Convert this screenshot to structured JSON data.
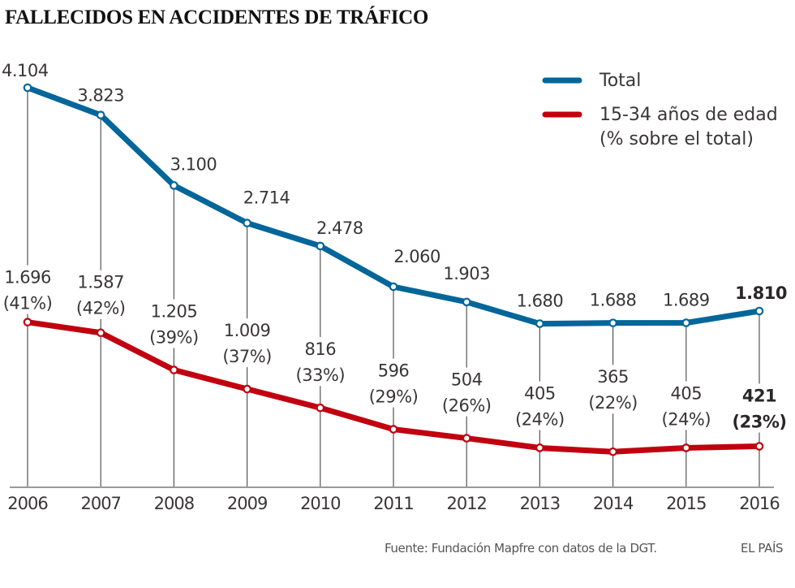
{
  "chart_data": {
    "type": "line",
    "title": "FALLECIDOS EN ACCIDENTES DE TRÁFICO",
    "xlabel": "",
    "ylabel": "",
    "x": [
      "2006",
      "2007",
      "2008",
      "2009",
      "2010",
      "2011",
      "2012",
      "2013",
      "2014",
      "2015",
      "2016"
    ],
    "ylim": [
      0,
      4104
    ],
    "grid": false,
    "legend_position": "top-right",
    "series": [
      {
        "name": "Total",
        "color": "#02669a",
        "values": [
          4104,
          3823,
          3100,
          2714,
          2478,
          2060,
          1903,
          1680,
          1688,
          1689,
          1810
        ],
        "labels": [
          "4.104",
          "3.823",
          "3.100",
          "2.714",
          "2.478",
          "2.060",
          "1.903",
          "1.680",
          "1.688",
          "1.689",
          "1.810"
        ]
      },
      {
        "name": "15-34 años de edad (% sobre el total)",
        "legend_lines": [
          "15-34 años de edad",
          "(% sobre el total)"
        ],
        "color": "#c1000f",
        "values": [
          1696,
          1587,
          1205,
          1009,
          816,
          596,
          504,
          405,
          365,
          405,
          421
        ],
        "percent": [
          41,
          42,
          39,
          37,
          33,
          29,
          26,
          24,
          22,
          24,
          23
        ],
        "labels": [
          "1.696",
          "1.587",
          "1.205",
          "1.009",
          "816",
          "596",
          "504",
          "405",
          "365",
          "405",
          "421"
        ],
        "pct_labels": [
          "(41%)",
          "(42%)",
          "(39%)",
          "(37%)",
          "(33%)",
          "(29%)",
          "(26%)",
          "(24%)",
          "(22%)",
          "(24%)",
          "(23%)"
        ]
      }
    ],
    "highlight_last": true
  },
  "footer": {
    "source": "Fuente: Fundación Mapfre con datos de la DGT.",
    "brand": "EL PAÍS"
  }
}
